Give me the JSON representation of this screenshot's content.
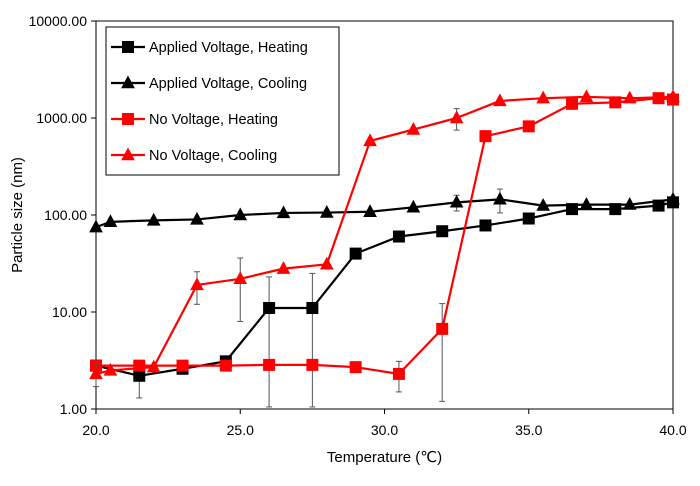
{
  "chart_data": {
    "type": "line",
    "title": "",
    "xlabel": "Temperature (℃)",
    "ylabel": "Particle size (nm)",
    "xlim": [
      20,
      40
    ],
    "ylim": [
      1,
      10000
    ],
    "yscale": "log",
    "x_ticks": [
      20,
      25,
      30,
      35,
      40
    ],
    "x_tick_labels": [
      "20.0",
      "25.0",
      "30.0",
      "35.0",
      "40.0"
    ],
    "y_ticks": [
      1,
      10,
      100,
      1000,
      10000
    ],
    "y_tick_labels": [
      "1.00",
      "10.00",
      "100.00",
      "1000.00",
      "10000.00"
    ],
    "legend_position": "top-left",
    "series": [
      {
        "name": "Applied Voltage, Heating",
        "color": "#000000",
        "marker": "square",
        "x": [
          20,
          21.5,
          23,
          24.5,
          26,
          27.5,
          29,
          30.5,
          32,
          33.5,
          35,
          36.5,
          38,
          39.5,
          40
        ],
        "y": [
          2.8,
          2.2,
          2.6,
          3.1,
          11,
          11,
          40,
          60,
          68,
          78,
          92,
          115,
          115,
          125,
          135
        ],
        "error": [
          0,
          0.9,
          0,
          0,
          12,
          14,
          0,
          0,
          0,
          0,
          0,
          0,
          0,
          0,
          0
        ]
      },
      {
        "name": "Applied Voltage, Cooling",
        "color": "#000000",
        "marker": "triangle",
        "x": [
          20,
          20.5,
          22,
          23.5,
          25,
          26.5,
          28,
          29.5,
          31,
          32.5,
          34,
          35.5,
          37,
          38.5,
          40
        ],
        "y": [
          75,
          85,
          88,
          90,
          100,
          105,
          106,
          108,
          120,
          135,
          145,
          125,
          128,
          128,
          145
        ],
        "error": [
          0,
          0,
          0,
          0,
          0,
          0,
          0,
          0,
          0,
          25,
          40,
          0,
          0,
          0,
          0
        ]
      },
      {
        "name": "No Voltage, Heating",
        "color": "#ff0000",
        "marker": "square",
        "x": [
          20,
          21.5,
          23,
          24.5,
          26,
          27.5,
          29,
          30.5,
          32,
          33.5,
          35,
          36.5,
          38,
          39.5,
          40
        ],
        "y": [
          2.8,
          2.8,
          2.8,
          2.8,
          2.85,
          2.85,
          2.7,
          2.3,
          6.7,
          650,
          820,
          1400,
          1450,
          1600,
          1550
        ],
        "error": [
          0,
          0,
          0,
          0,
          0,
          0,
          0,
          0.8,
          5.5,
          0,
          0,
          0,
          0,
          0,
          0
        ]
      },
      {
        "name": "No Voltage, Cooling",
        "color": "#ff0000",
        "marker": "triangle",
        "x": [
          20,
          20.5,
          22,
          23.5,
          25,
          26.5,
          28,
          29.5,
          31,
          32.5,
          34,
          35.5,
          37,
          38.5,
          40
        ],
        "y": [
          2.3,
          2.5,
          2.7,
          19,
          22,
          28,
          31,
          580,
          760,
          1000,
          1500,
          1600,
          1650,
          1600,
          1650
        ],
        "error": [
          0.6,
          0,
          0,
          7,
          14,
          0,
          0,
          0,
          0,
          250,
          0,
          0,
          0,
          0,
          0
        ]
      }
    ]
  }
}
